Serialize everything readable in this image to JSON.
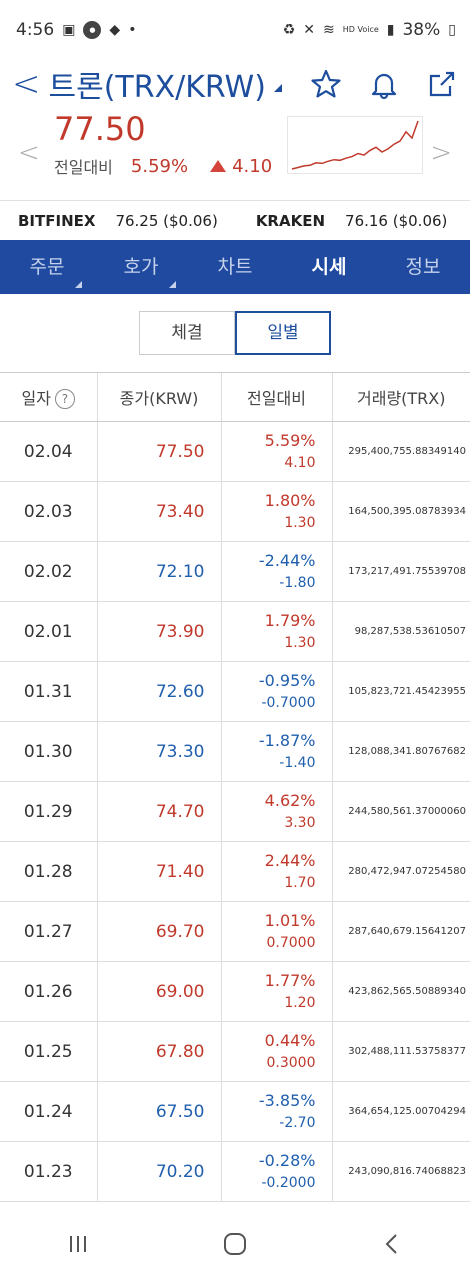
{
  "status": {
    "time": "4:56",
    "battery": "38%",
    "network": "HD Voice"
  },
  "header": {
    "title": "트론(TRX/KRW)",
    "icons": [
      "star-icon",
      "bell-icon",
      "share-icon"
    ]
  },
  "quote": {
    "price": "77.50",
    "change_label": "전일대비",
    "change_pct": "5.59%",
    "change_abs": "4.10",
    "sparkline": [
      62,
      62.5,
      63,
      63.2,
      64,
      63.8,
      64.5,
      65,
      64.8,
      65.5,
      66,
      67,
      66.5,
      68,
      69,
      67.5,
      68.5,
      70,
      71,
      74,
      72,
      77.5
    ]
  },
  "exchanges": [
    {
      "name": "BITFINEX",
      "value": "76.25 ($0.06)"
    },
    {
      "name": "KRAKEN",
      "value": "76.16 ($0.06)"
    }
  ],
  "tabs": [
    {
      "label": "주문",
      "caret": true
    },
    {
      "label": "호가",
      "caret": true
    },
    {
      "label": "차트",
      "caret": false
    },
    {
      "label": "시세",
      "caret": false,
      "active": true
    },
    {
      "label": "정보",
      "caret": false
    }
  ],
  "segments": [
    {
      "label": "체결"
    },
    {
      "label": "일별",
      "active": true
    }
  ],
  "table": {
    "headers": [
      "일자",
      "종가(KRW)",
      "전일대비",
      "거래량(TRX)"
    ],
    "rows": [
      {
        "date": "02.04",
        "close": "77.50",
        "pct": "5.59%",
        "abs": "4.10",
        "vol": "295,400,755.88349140",
        "dir": "up"
      },
      {
        "date": "02.03",
        "close": "73.40",
        "pct": "1.80%",
        "abs": "1.30",
        "vol": "164,500,395.08783934",
        "dir": "up"
      },
      {
        "date": "02.02",
        "close": "72.10",
        "pct": "-2.44%",
        "abs": "-1.80",
        "vol": "173,217,491.75539708",
        "dir": "down"
      },
      {
        "date": "02.01",
        "close": "73.90",
        "pct": "1.79%",
        "abs": "1.30",
        "vol": "98,287,538.53610507",
        "dir": "up"
      },
      {
        "date": "01.31",
        "close": "72.60",
        "pct": "-0.95%",
        "abs": "-0.7000",
        "vol": "105,823,721.45423955",
        "dir": "down"
      },
      {
        "date": "01.30",
        "close": "73.30",
        "pct": "-1.87%",
        "abs": "-1.40",
        "vol": "128,088,341.80767682",
        "dir": "down"
      },
      {
        "date": "01.29",
        "close": "74.70",
        "pct": "4.62%",
        "abs": "3.30",
        "vol": "244,580,561.37000060",
        "dir": "up"
      },
      {
        "date": "01.28",
        "close": "71.40",
        "pct": "2.44%",
        "abs": "1.70",
        "vol": "280,472,947.07254580",
        "dir": "up"
      },
      {
        "date": "01.27",
        "close": "69.70",
        "pct": "1.01%",
        "abs": "0.7000",
        "vol": "287,640,679.15641207",
        "dir": "up"
      },
      {
        "date": "01.26",
        "close": "69.00",
        "pct": "1.77%",
        "abs": "1.20",
        "vol": "423,862,565.50889340",
        "dir": "up"
      },
      {
        "date": "01.25",
        "close": "67.80",
        "pct": "0.44%",
        "abs": "0.3000",
        "vol": "302,488,111.53758377",
        "dir": "up"
      },
      {
        "date": "01.24",
        "close": "67.50",
        "pct": "-3.85%",
        "abs": "-2.70",
        "vol": "364,654,125.00704294",
        "dir": "down"
      },
      {
        "date": "01.23",
        "close": "70.20",
        "pct": "-0.28%",
        "abs": "-0.2000",
        "vol": "243,090,816.74068823",
        "dir": "down"
      }
    ]
  },
  "colors": {
    "accent": "#1f4aa0",
    "up": "#c0392b",
    "down": "#1f5fae"
  }
}
